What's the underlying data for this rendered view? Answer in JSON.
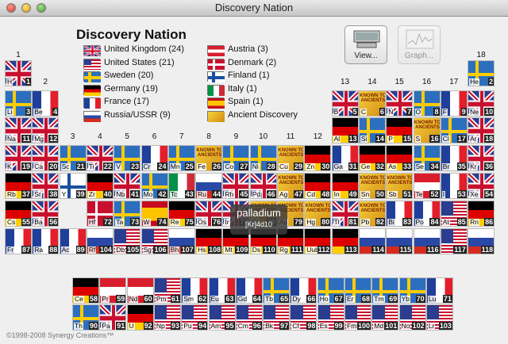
{
  "window": {
    "title": "Discovery Nation"
  },
  "app_title": "Discovery Nation",
  "legend": [
    {
      "flag": "uk",
      "label": "United Kingdom (24)",
      "col": 0,
      "row": 0
    },
    {
      "flag": "us",
      "label": "United States (21)",
      "col": 0,
      "row": 1
    },
    {
      "flag": "se",
      "label": "Sweden (20)",
      "col": 0,
      "row": 2
    },
    {
      "flag": "de",
      "label": "Germany (19)",
      "col": 0,
      "row": 3
    },
    {
      "flag": "fr",
      "label": "France (17)",
      "col": 0,
      "row": 4
    },
    {
      "flag": "ru",
      "label": "Russia/USSR (9)",
      "col": 0,
      "row": 5
    },
    {
      "flag": "at",
      "label": "Austria (3)",
      "col": 1,
      "row": 0
    },
    {
      "flag": "dk",
      "label": "Denmark (2)",
      "col": 1,
      "row": 1
    },
    {
      "flag": "fi",
      "label": "Finland (1)",
      "col": 1,
      "row": 2
    },
    {
      "flag": "it",
      "label": "Italy (1)",
      "col": 1,
      "row": 3
    },
    {
      "flag": "es",
      "label": "Spain (1)",
      "col": 1,
      "row": 4
    },
    {
      "flag": "an",
      "label": "Ancient Discovery",
      "col": 1,
      "row": 5
    }
  ],
  "toolbar": {
    "view_label": "View...",
    "graph_label": "Graph..."
  },
  "ancient_text": "KNOWN TO ANCIENTS",
  "groups": [
    "1",
    "2",
    "3",
    "4",
    "5",
    "6",
    "7",
    "8",
    "9",
    "10",
    "11",
    "12",
    "13",
    "14",
    "15",
    "16",
    "17",
    "18"
  ],
  "tooltip": {
    "name": "palladium",
    "config": "[Kr]4d10"
  },
  "copyright": "©1998-2008 Synergy Creations™",
  "elements": [
    {
      "s": "H",
      "n": 1,
      "g": 1,
      "p": 1,
      "f": "uk"
    },
    {
      "s": "He",
      "n": 2,
      "g": 18,
      "p": 1,
      "f": "se"
    },
    {
      "s": "Li",
      "n": 3,
      "g": 1,
      "p": 2,
      "f": "se"
    },
    {
      "s": "Be",
      "n": 4,
      "g": 2,
      "p": 2,
      "f": "fr"
    },
    {
      "s": "B",
      "n": 5,
      "g": 13,
      "p": 2,
      "f": "uk"
    },
    {
      "s": "C",
      "n": 6,
      "g": 14,
      "p": 2,
      "f": "an"
    },
    {
      "s": "N",
      "n": 7,
      "g": 15,
      "p": 2,
      "f": "uk"
    },
    {
      "s": "O",
      "n": 8,
      "g": 16,
      "p": 2,
      "f": "se"
    },
    {
      "s": "F",
      "n": 9,
      "g": 17,
      "p": 2,
      "f": "fr"
    },
    {
      "s": "Ne",
      "n": 10,
      "g": 18,
      "p": 2,
      "f": "uk"
    },
    {
      "s": "Na",
      "n": 11,
      "g": 1,
      "p": 3,
      "f": "uk"
    },
    {
      "s": "Mg",
      "n": 12,
      "g": 2,
      "p": 3,
      "f": "uk"
    },
    {
      "s": "Al",
      "n": 13,
      "g": 13,
      "p": 3,
      "f": "de"
    },
    {
      "s": "Si",
      "n": 14,
      "g": 14,
      "p": 3,
      "f": "se"
    },
    {
      "s": "P",
      "n": 15,
      "g": 15,
      "p": 3,
      "f": "de"
    },
    {
      "s": "S",
      "n": 16,
      "g": 16,
      "p": 3,
      "f": "an"
    },
    {
      "s": "Cl",
      "n": 17,
      "g": 17,
      "p": 3,
      "f": "se"
    },
    {
      "s": "Ar",
      "n": 18,
      "g": 18,
      "p": 3,
      "f": "uk"
    },
    {
      "s": "K",
      "n": 19,
      "g": 1,
      "p": 4,
      "f": "uk"
    },
    {
      "s": "Ca",
      "n": 20,
      "g": 2,
      "p": 4,
      "f": "uk"
    },
    {
      "s": "Sc",
      "n": 21,
      "g": 3,
      "p": 4,
      "f": "se"
    },
    {
      "s": "Ti",
      "n": 22,
      "g": 4,
      "p": 4,
      "f": "uk"
    },
    {
      "s": "V",
      "n": 23,
      "g": 5,
      "p": 4,
      "f": "se"
    },
    {
      "s": "Cr",
      "n": 24,
      "g": 6,
      "p": 4,
      "f": "fr"
    },
    {
      "s": "Mn",
      "n": 25,
      "g": 7,
      "p": 4,
      "f": "se"
    },
    {
      "s": "Fe",
      "n": 26,
      "g": 8,
      "p": 4,
      "f": "an"
    },
    {
      "s": "Co",
      "n": 27,
      "g": 9,
      "p": 4,
      "f": "se"
    },
    {
      "s": "Ni",
      "n": 28,
      "g": 10,
      "p": 4,
      "f": "se"
    },
    {
      "s": "Cu",
      "n": 29,
      "g": 11,
      "p": 4,
      "f": "an"
    },
    {
      "s": "Zn",
      "n": 30,
      "g": 12,
      "p": 4,
      "f": "de"
    },
    {
      "s": "Ga",
      "n": 31,
      "g": 13,
      "p": 4,
      "f": "fr"
    },
    {
      "s": "Ge",
      "n": 32,
      "g": 14,
      "p": 4,
      "f": "de"
    },
    {
      "s": "As",
      "n": 33,
      "g": 15,
      "p": 4,
      "f": "de"
    },
    {
      "s": "Se",
      "n": 34,
      "g": 16,
      "p": 4,
      "f": "se"
    },
    {
      "s": "Br",
      "n": 35,
      "g": 17,
      "p": 4,
      "f": "fr"
    },
    {
      "s": "Kr",
      "n": 36,
      "g": 18,
      "p": 4,
      "f": "uk"
    },
    {
      "s": "Rb",
      "n": 37,
      "g": 1,
      "p": 5,
      "f": "de"
    },
    {
      "s": "Sr",
      "n": 38,
      "g": 2,
      "p": 5,
      "f": "uk"
    },
    {
      "s": "Y",
      "n": 39,
      "g": 3,
      "p": 5,
      "f": "fi"
    },
    {
      "s": "Zr",
      "n": 40,
      "g": 4,
      "p": 5,
      "f": "de"
    },
    {
      "s": "Nb",
      "n": 41,
      "g": 5,
      "p": 5,
      "f": "uk"
    },
    {
      "s": "Mo",
      "n": 42,
      "g": 6,
      "p": 5,
      "f": "se"
    },
    {
      "s": "Tc",
      "n": 43,
      "g": 7,
      "p": 5,
      "f": "it"
    },
    {
      "s": "Ru",
      "n": 44,
      "g": 8,
      "p": 5,
      "f": "ru"
    },
    {
      "s": "Rh",
      "n": 45,
      "g": 9,
      "p": 5,
      "f": "uk"
    },
    {
      "s": "Pd",
      "n": 46,
      "g": 10,
      "p": 5,
      "f": "uk"
    },
    {
      "s": "Ag",
      "n": 47,
      "g": 11,
      "p": 5,
      "f": "an"
    },
    {
      "s": "Cd",
      "n": 48,
      "g": 12,
      "p": 5,
      "f": "de"
    },
    {
      "s": "In",
      "n": 49,
      "g": 13,
      "p": 5,
      "f": "de"
    },
    {
      "s": "Sn",
      "n": 50,
      "g": 14,
      "p": 5,
      "f": "an"
    },
    {
      "s": "Sb",
      "n": 51,
      "g": 15,
      "p": 5,
      "f": "an"
    },
    {
      "s": "Te",
      "n": 52,
      "g": 16,
      "p": 5,
      "f": "at"
    },
    {
      "s": "I",
      "n": 53,
      "g": 17,
      "p": 5,
      "f": "fr"
    },
    {
      "s": "Xe",
      "n": 54,
      "g": 18,
      "p": 5,
      "f": "uk"
    },
    {
      "s": "Cs",
      "n": 55,
      "g": 1,
      "p": 6,
      "f": "de"
    },
    {
      "s": "Ba",
      "n": 56,
      "g": 2,
      "p": 6,
      "f": "uk"
    },
    {
      "s": "Hf",
      "n": 72,
      "g": 4,
      "p": 6,
      "f": "dk"
    },
    {
      "s": "Ta",
      "n": 73,
      "g": 5,
      "p": 6,
      "f": "se"
    },
    {
      "s": "W",
      "n": 74,
      "g": 6,
      "p": 6,
      "f": "es"
    },
    {
      "s": "Re",
      "n": 75,
      "g": 7,
      "p": 6,
      "f": "de"
    },
    {
      "s": "Os",
      "n": 76,
      "g": 8,
      "p": 6,
      "f": "uk"
    },
    {
      "s": "Ir",
      "n": 77,
      "g": 9,
      "p": 6,
      "f": "uk"
    },
    {
      "s": "Pt",
      "n": 78,
      "g": 10,
      "p": 6,
      "f": "an"
    },
    {
      "s": "Au",
      "n": 79,
      "g": 11,
      "p": 6,
      "f": "an"
    },
    {
      "s": "Hg",
      "n": 80,
      "g": 12,
      "p": 6,
      "f": "an"
    },
    {
      "s": "Tl",
      "n": 81,
      "g": 13,
      "p": 6,
      "f": "uk"
    },
    {
      "s": "Pb",
      "n": 82,
      "g": 14,
      "p": 6,
      "f": "an"
    },
    {
      "s": "Bi",
      "n": 83,
      "g": 15,
      "p": 6,
      "f": "fr"
    },
    {
      "s": "Po",
      "n": 84,
      "g": 16,
      "p": 6,
      "f": "fr"
    },
    {
      "s": "At",
      "n": 85,
      "g": 17,
      "p": 6,
      "f": "us"
    },
    {
      "s": "Rn",
      "n": 86,
      "g": 18,
      "p": 6,
      "f": "de"
    },
    {
      "s": "Fr",
      "n": 87,
      "g": 1,
      "p": 7,
      "f": "fr"
    },
    {
      "s": "Ra",
      "n": 88,
      "g": 2,
      "p": 7,
      "f": "fr"
    },
    {
      "s": "Ac",
      "n": 89,
      "g": 3,
      "p": 7,
      "f": "fr"
    },
    {
      "s": "Rf",
      "n": 104,
      "g": 4,
      "p": 7,
      "f": "ru"
    },
    {
      "s": "Db",
      "n": 105,
      "g": 5,
      "p": 7,
      "f": "us"
    },
    {
      "s": "Sg",
      "n": 106,
      "g": 6,
      "p": 7,
      "f": "us"
    },
    {
      "s": "Bh",
      "n": 107,
      "g": 7,
      "p": 7,
      "f": "ru"
    },
    {
      "s": "Hs",
      "n": 108,
      "g": 8,
      "p": 7,
      "f": "de"
    },
    {
      "s": "Mt",
      "n": 109,
      "g": 9,
      "p": 7,
      "f": "de"
    },
    {
      "s": "Ds",
      "n": 110,
      "g": 10,
      "p": 7,
      "f": "de"
    },
    {
      "s": "Rg",
      "n": 111,
      "g": 11,
      "p": 7,
      "f": "de"
    },
    {
      "s": "Uub",
      "n": 112,
      "g": 12,
      "p": 7,
      "f": "de"
    },
    {
      "s": "",
      "n": 113,
      "g": 13,
      "p": 7,
      "f": "de"
    },
    {
      "s": "",
      "n": 114,
      "g": 14,
      "p": 7,
      "f": "ru"
    },
    {
      "s": "",
      "n": 115,
      "g": 15,
      "p": 7,
      "f": "ru"
    },
    {
      "s": "",
      "n": 116,
      "g": 16,
      "p": 7,
      "f": "ru"
    },
    {
      "s": "",
      "n": 117,
      "g": 17,
      "p": 7,
      "f": "us"
    },
    {
      "s": "",
      "n": 118,
      "g": 18,
      "p": 7,
      "f": "ru"
    },
    {
      "s": "La",
      "n": 57,
      "g": 4,
      "p": 9,
      "f": "se"
    },
    {
      "s": "Ce",
      "n": 58,
      "g": 3,
      "p": 9,
      "f": "de"
    },
    {
      "s": "Pr",
      "n": 59,
      "g": 4,
      "p": 9,
      "f": "at"
    },
    {
      "s": "Nd",
      "n": 60,
      "g": 5,
      "p": 9,
      "f": "at"
    },
    {
      "s": "Pm",
      "n": 61,
      "g": 6,
      "p": 9,
      "f": "us"
    },
    {
      "s": "Sm",
      "n": 62,
      "g": 7,
      "p": 9,
      "f": "fr"
    },
    {
      "s": "Eu",
      "n": 63,
      "g": 8,
      "p": 9,
      "f": "fr"
    },
    {
      "s": "Gd",
      "n": 64,
      "g": 9,
      "p": 9,
      "f": "fr"
    },
    {
      "s": "Tb",
      "n": 65,
      "g": 10,
      "p": 9,
      "f": "se"
    },
    {
      "s": "Dy",
      "n": 66,
      "g": 11,
      "p": 9,
      "f": "fr"
    },
    {
      "s": "Ho",
      "n": 67,
      "g": 12,
      "p": 9,
      "f": "se"
    },
    {
      "s": "Er",
      "n": 68,
      "g": 13,
      "p": 9,
      "f": "se"
    },
    {
      "s": "Tm",
      "n": 69,
      "g": 14,
      "p": 9,
      "f": "se"
    },
    {
      "s": "Yb",
      "n": 70,
      "g": 15,
      "p": 9,
      "f": "se"
    },
    {
      "s": "Lu",
      "n": 71,
      "g": 16,
      "p": 9,
      "f": "fr"
    },
    {
      "s": "Th",
      "n": 90,
      "g": 3,
      "p": 10,
      "f": "se"
    },
    {
      "s": "Pa",
      "n": 91,
      "g": 4,
      "p": 10,
      "f": "uk"
    },
    {
      "s": "U",
      "n": 92,
      "g": 5,
      "p": 10,
      "f": "de"
    },
    {
      "s": "Np",
      "n": 93,
      "g": 6,
      "p": 10,
      "f": "us"
    },
    {
      "s": "Pu",
      "n": 94,
      "g": 7,
      "p": 10,
      "f": "us"
    },
    {
      "s": "Am",
      "n": 95,
      "g": 8,
      "p": 10,
      "f": "us"
    },
    {
      "s": "Cm",
      "n": 96,
      "g": 9,
      "p": 10,
      "f": "us"
    },
    {
      "s": "Bk",
      "n": 97,
      "g": 10,
      "p": 10,
      "f": "us"
    },
    {
      "s": "Cf",
      "n": 98,
      "g": 11,
      "p": 10,
      "f": "us"
    },
    {
      "s": "Es",
      "n": 99,
      "g": 12,
      "p": 10,
      "f": "us"
    },
    {
      "s": "Fm",
      "n": 100,
      "g": 13,
      "p": 10,
      "f": "us"
    },
    {
      "s": "Md",
      "n": 101,
      "g": 14,
      "p": 10,
      "f": "us"
    },
    {
      "s": "No",
      "n": 102,
      "g": 15,
      "p": 10,
      "f": "us"
    },
    {
      "s": "Lr",
      "n": 103,
      "g": 16,
      "p": 10,
      "f": "us"
    }
  ]
}
